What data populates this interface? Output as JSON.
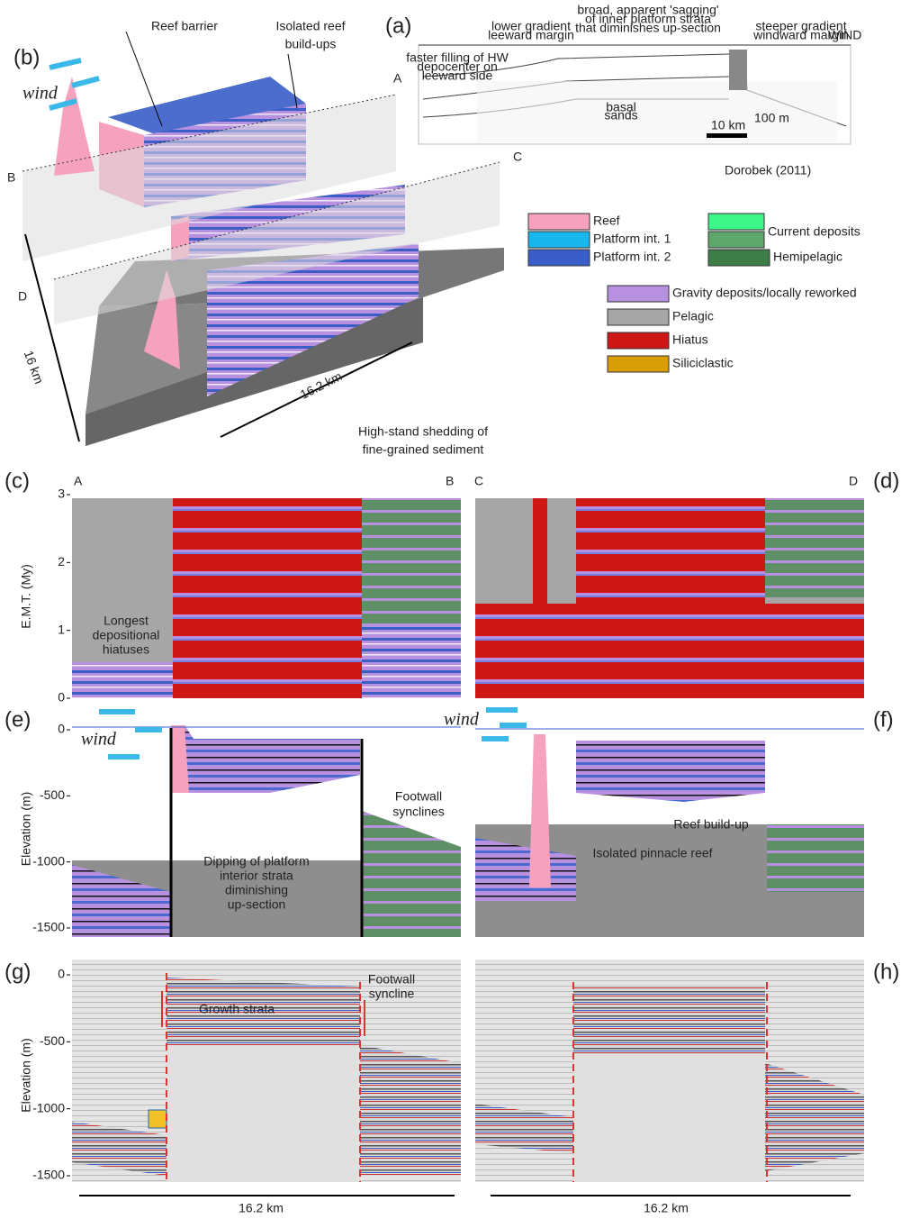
{
  "panel_a": {
    "label": "(a)",
    "wind": "WIND",
    "annotations": {
      "leeward": [
        "lower gradient",
        "leeward margin"
      ],
      "sagging": [
        "broad, apparent 'sagging'",
        "of inner platform strata",
        "that diminishes up-section"
      ],
      "windward": [
        "steeper gradient",
        "windward margin"
      ],
      "depocenter": [
        "faster filling of HW",
        "depocenter on",
        "leeward side"
      ],
      "basal": [
        "basal",
        "sands"
      ],
      "scale_h": "10 km",
      "scale_v": "100 m"
    },
    "source": "Dorobek (2011)"
  },
  "panel_b": {
    "label": "(b)",
    "wind": "wind",
    "reef_barrier": "Reef barrier",
    "isolated": [
      "Isolated reef",
      "build-ups"
    ],
    "section_points": [
      "A",
      "B",
      "C",
      "D"
    ],
    "width": "16 km",
    "length": "16.2 km"
  },
  "legend": {
    "items": [
      {
        "label": "Reef",
        "color": "#f6a2bf"
      },
      {
        "label": "Platform int. 1",
        "color": "#1ab6ee"
      },
      {
        "label": "Platform int. 2",
        "color": "#3a5dc8"
      },
      {
        "label": "Hemipelagic",
        "color": "#3c7d48"
      },
      {
        "label": "Gravity deposits/locally reworked",
        "color": "#b890e0"
      },
      {
        "label": "Pelagic",
        "color": "#a6a6a6"
      },
      {
        "label": "Hiatus",
        "color": "#cf1616"
      },
      {
        "label": "Siliciclastic",
        "color": "#d89e06"
      }
    ],
    "current_deposits": {
      "label": "Current deposits",
      "colors": [
        "#3ef58a",
        "#5fa86c"
      ]
    }
  },
  "shedding_note": [
    "High-stand shedding of",
    "fine-grained sediment"
  ],
  "panel_c": {
    "label": "(c)",
    "start": "A",
    "end": "B",
    "axis": {
      "title": "E.M.T. (My)",
      "ylim": [
        0,
        3
      ],
      "ticks": [
        0,
        1,
        2,
        3
      ]
    },
    "annotation": [
      "Longest",
      "depositional",
      "hiatuses"
    ]
  },
  "panel_d": {
    "label": "(d)",
    "start": "C",
    "end": "D"
  },
  "panel_e": {
    "label": "(e)",
    "wind": "wind",
    "axis": {
      "title": "Elevation (m)",
      "ylim": [
        -1500,
        0
      ],
      "ticks": [
        0,
        -500,
        -1000,
        -1500
      ]
    },
    "annotations": {
      "synclines": [
        "Footwall",
        "synclines"
      ],
      "dipping": [
        "Dipping of platform",
        "interior strata",
        "diminishing",
        "up-section"
      ]
    }
  },
  "panel_f": {
    "label": "(f)",
    "wind": "wind",
    "annotations": {
      "pinnacle": "Isolated pinnacle reef",
      "buildup": "Reef build-up"
    }
  },
  "panel_g": {
    "label": "(g)",
    "axis": {
      "title": "Elevation (m)",
      "ylim": [
        -1500,
        0
      ],
      "ticks": [
        0,
        -500,
        -1000,
        -1500
      ]
    },
    "annotations": {
      "growth": "Growth strata",
      "syncline": [
        "Footwall",
        "syncline"
      ]
    },
    "width": "16.2 km"
  },
  "panel_h": {
    "label": "(h)",
    "width": "16.2 km"
  }
}
